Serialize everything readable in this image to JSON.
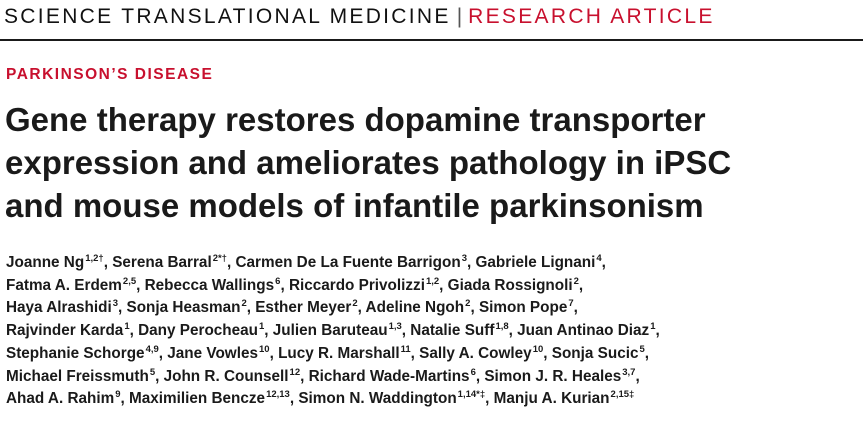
{
  "header": {
    "journal": "SCIENCE TRANSLATIONAL MEDICINE",
    "separator": "|",
    "article_type": "RESEARCH ARTICLE"
  },
  "category": "PARKINSON’S DISEASE",
  "title_lines": [
    "Gene therapy restores dopamine transporter",
    "expression and ameliorates pathology in iPSC",
    "and mouse models of infantile parkinsonism"
  ],
  "author_lines": [
    [
      {
        "name": "Joanne Ng",
        "sup": "1,2†",
        "sep": ","
      },
      {
        "name": "Serena Barral",
        "sup": "2*†",
        "sep": ","
      },
      {
        "name": "Carmen De La Fuente Barrigon",
        "sup": "3",
        "sep": ","
      },
      {
        "name": "Gabriele Lignani",
        "sup": "4",
        "sep": ","
      }
    ],
    [
      {
        "name": "Fatma A. Erdem",
        "sup": "2,5",
        "sep": ","
      },
      {
        "name": "Rebecca Wallings",
        "sup": "6",
        "sep": ","
      },
      {
        "name": "Riccardo Privolizzi",
        "sup": "1,2",
        "sep": ","
      },
      {
        "name": "Giada Rossignoli",
        "sup": "2",
        "sep": ","
      }
    ],
    [
      {
        "name": "Haya Alrashidi",
        "sup": "3",
        "sep": ","
      },
      {
        "name": "Sonja Heasman",
        "sup": "2",
        "sep": ","
      },
      {
        "name": "Esther Meyer",
        "sup": "2",
        "sep": ","
      },
      {
        "name": "Adeline Ngoh",
        "sup": "2",
        "sep": ","
      },
      {
        "name": "Simon Pope",
        "sup": "7",
        "sep": ","
      }
    ],
    [
      {
        "name": "Rajvinder Karda",
        "sup": "1",
        "sep": ","
      },
      {
        "name": "Dany Perocheau",
        "sup": "1",
        "sep": ","
      },
      {
        "name": "Julien Baruteau",
        "sup": "1,3",
        "sep": ","
      },
      {
        "name": "Natalie Suff",
        "sup": "1,8",
        "sep": ","
      },
      {
        "name": "Juan Antinao Diaz",
        "sup": "1",
        "sep": ","
      }
    ],
    [
      {
        "name": "Stephanie Schorge",
        "sup": "4,9",
        "sep": ","
      },
      {
        "name": "Jane Vowles",
        "sup": "10",
        "sep": ","
      },
      {
        "name": "Lucy R. Marshall",
        "sup": "11",
        "sep": ","
      },
      {
        "name": "Sally A. Cowley",
        "sup": "10",
        "sep": ","
      },
      {
        "name": "Sonja Sucic",
        "sup": "5",
        "sep": ","
      }
    ],
    [
      {
        "name": "Michael Freissmuth",
        "sup": "5",
        "sep": ","
      },
      {
        "name": "John R. Counsell",
        "sup": "12",
        "sep": ","
      },
      {
        "name": "Richard Wade-Martins",
        "sup": "6",
        "sep": ","
      },
      {
        "name": "Simon J. R. Heales",
        "sup": "3,7",
        "sep": ","
      }
    ],
    [
      {
        "name": "Ahad A. Rahim",
        "sup": "9",
        "sep": ","
      },
      {
        "name": "Maximilien Bencze",
        "sup": "12,13",
        "sep": ","
      },
      {
        "name": "Simon N. Waddington",
        "sup": "1,14*‡",
        "sep": ","
      },
      {
        "name": "Manju A. Kurian",
        "sup": "2,15‡",
        "sep": ""
      }
    ]
  ],
  "colors": {
    "accent_red": "#c8102e",
    "text": "#1a1a1a"
  }
}
